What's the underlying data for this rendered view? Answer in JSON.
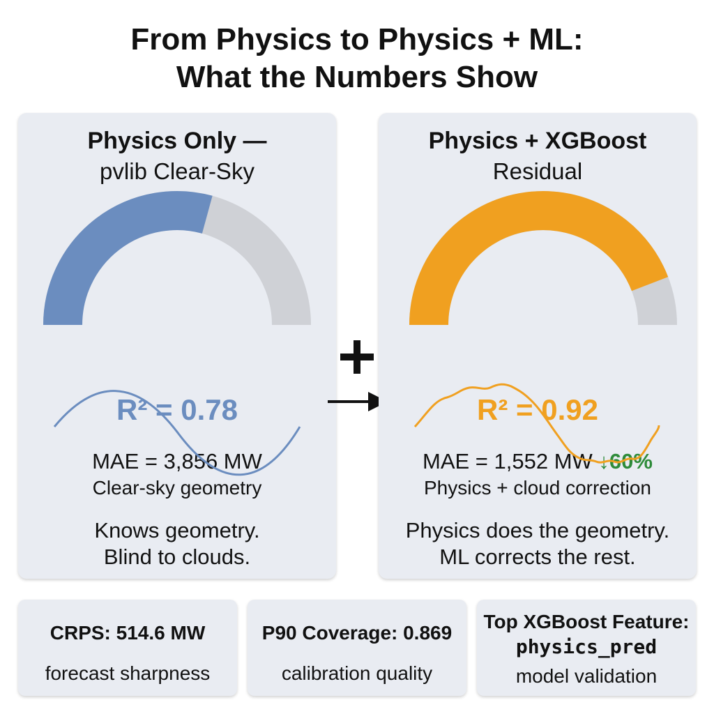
{
  "title": {
    "line1": "From Physics to Physics + ML:",
    "line2": "What the Numbers Show"
  },
  "left_panel": {
    "title": "Physics Only —",
    "subtitle": "pvlib Clear-Sky",
    "r2_label": "R² = 0.78",
    "r2_value": 0.78,
    "mae": "MAE = 3,856 MW",
    "caption": "Clear-sky geometry",
    "note_line1": "Knows geometry.",
    "note_line2": "Blind to clouds.",
    "accent_color": "#6b8dbf"
  },
  "right_panel": {
    "title": "Physics + XGBoost",
    "subtitle": "Residual",
    "r2_label": "R² = 0.92",
    "r2_value": 0.92,
    "mae": "MAE = 1,552 MW",
    "mae_change": "↓60%",
    "caption": "Physics + cloud correction",
    "note_line1": "Physics does the geometry.",
    "note_line2": "ML corrects the rest.",
    "accent_color": "#f0a020"
  },
  "connector": {
    "plus_icon": "plus-icon",
    "arrow_icon": "right-arrow-icon"
  },
  "metrics": [
    {
      "title": "CRPS: 514.6 MW",
      "subtitle": "forecast sharpness"
    },
    {
      "title": "P90 Coverage: 0.869",
      "subtitle": "calibration quality"
    },
    {
      "title": "Top XGBoost Feature:",
      "code": "physics_pred",
      "subtitle": "model validation"
    }
  ],
  "colors": {
    "panel_bg": "#e9ecf2",
    "gauge_track": "#cfd1d6",
    "improvement_green": "#2e8b3a"
  }
}
